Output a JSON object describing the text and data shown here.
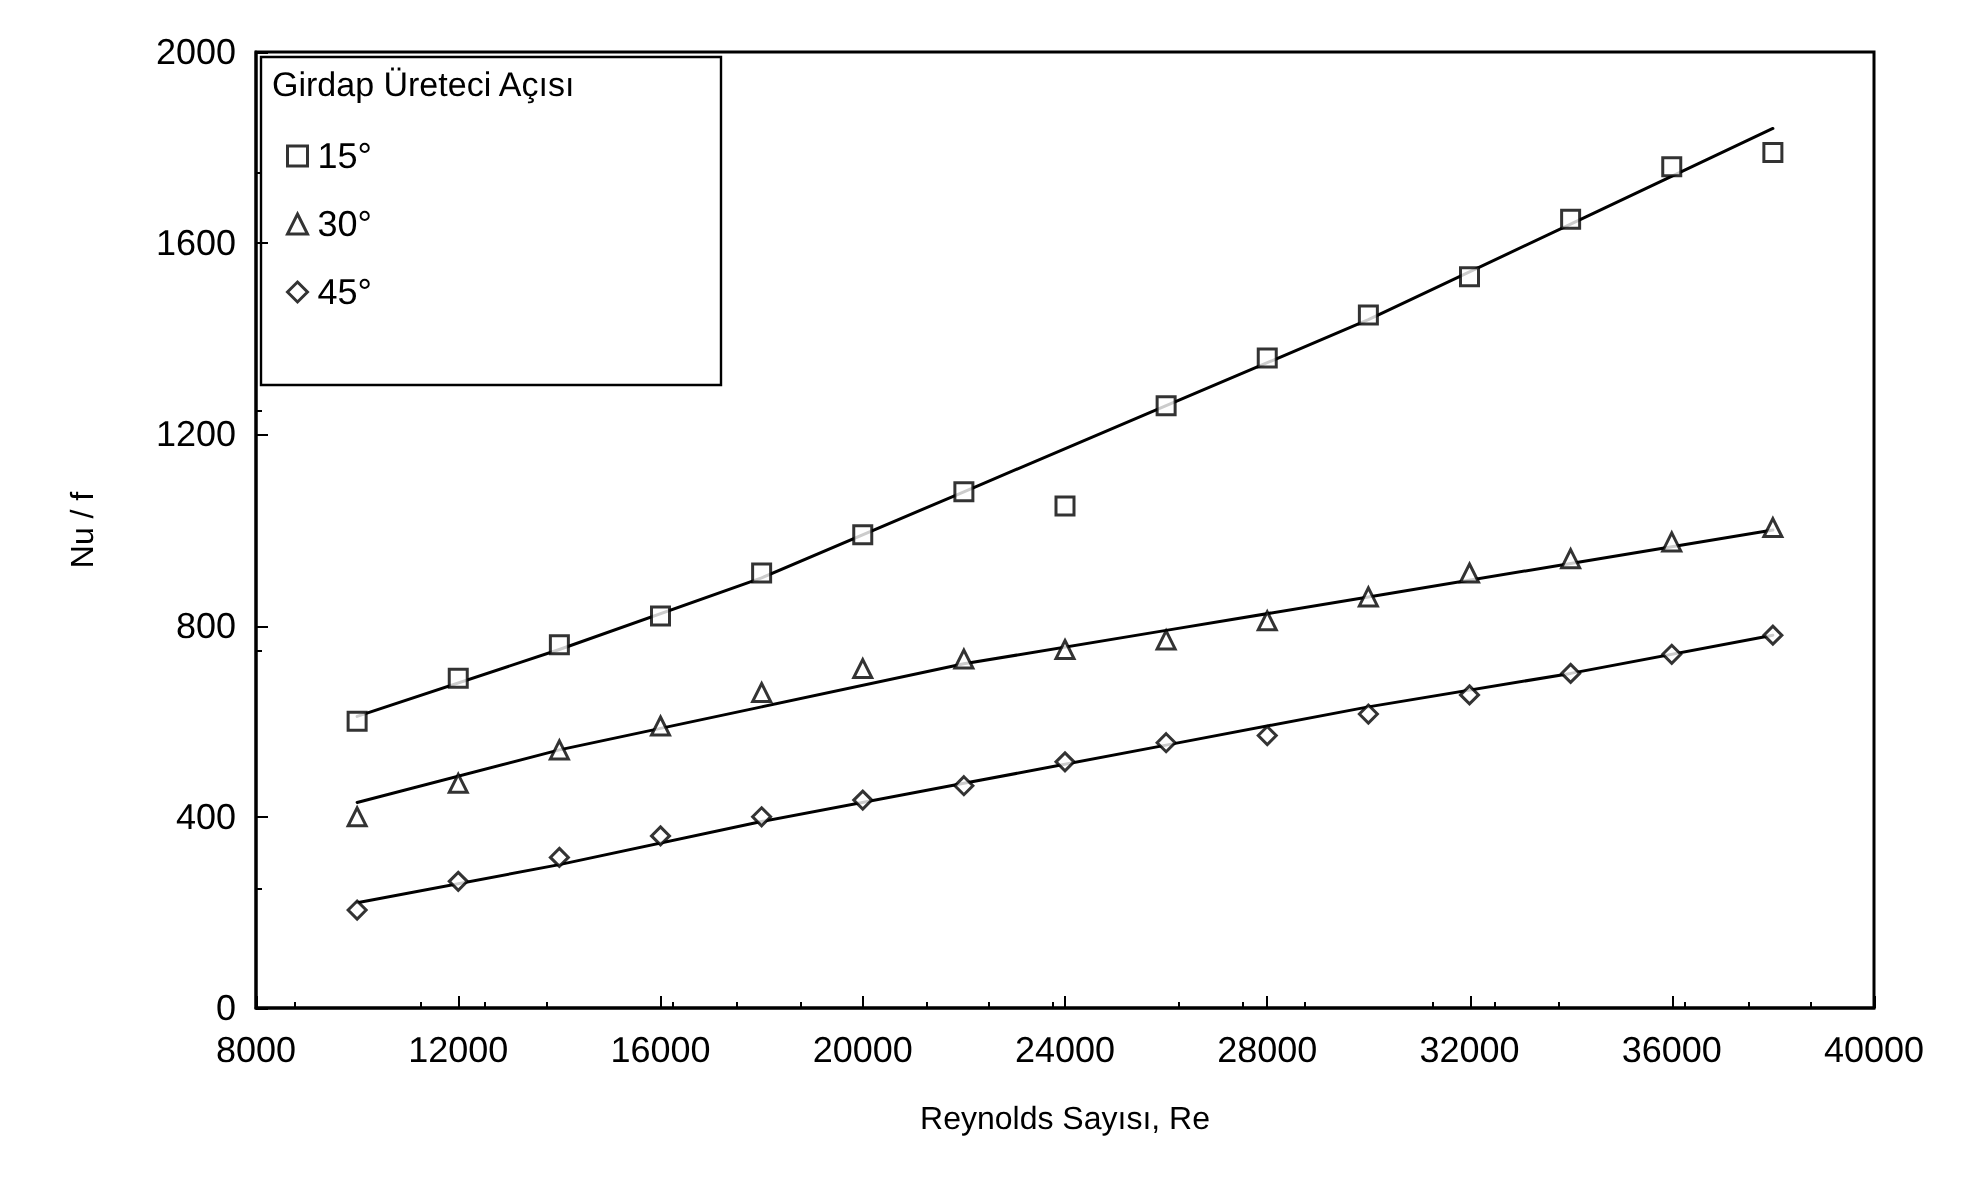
{
  "chart_data": {
    "type": "scatter",
    "xlabel": "Reynolds Sayısı, Re",
    "ylabel": "Nu / f",
    "legend_title": "Girdap Üreteci Açısı",
    "legend": "top left",
    "grid": false,
    "xlim": [
      8000,
      40000
    ],
    "xticks": [
      8000,
      12000,
      16000,
      20000,
      24000,
      28000,
      32000,
      36000,
      40000
    ],
    "ylim": [
      0,
      2000
    ],
    "yticks": [
      0,
      400,
      800,
      1200,
      1600,
      2000
    ],
    "series": [
      {
        "name": "15°",
        "marker": "square",
        "color": "#000000",
        "x": [
          10000,
          12000,
          14000,
          16000,
          18000,
          20000,
          22000,
          24000,
          26000,
          28000,
          30000,
          32000,
          34000,
          36000,
          38000
        ],
        "values": [
          600,
          690,
          760,
          820,
          910,
          990,
          1080,
          1050,
          1260,
          1360,
          1450,
          1530,
          1650,
          1760,
          1790
        ]
      },
      {
        "name": "30°",
        "marker": "triangle",
        "color": "#000000",
        "x": [
          10000,
          12000,
          14000,
          16000,
          18000,
          20000,
          22000,
          24000,
          26000,
          28000,
          30000,
          32000,
          34000,
          36000,
          38000
        ],
        "values": [
          400,
          470,
          540,
          590,
          660,
          710,
          730,
          750,
          770,
          810,
          860,
          910,
          940,
          975,
          1005
        ]
      },
      {
        "name": "45°",
        "marker": "diamond",
        "color": "#000000",
        "x": [
          10000,
          12000,
          14000,
          16000,
          18000,
          20000,
          22000,
          24000,
          26000,
          28000,
          30000,
          32000,
          34000,
          36000,
          38000
        ],
        "values": [
          205,
          265,
          315,
          360,
          400,
          435,
          465,
          515,
          555,
          570,
          615,
          655,
          700,
          740,
          780
        ]
      },
      {
        "type": "line",
        "marker": "none",
        "color": "#000000",
        "x": [
          10000,
          14000,
          18000,
          22000,
          26000,
          30000,
          34000,
          38000
        ],
        "values": [
          610,
          750,
          900,
          1080,
          1260,
          1440,
          1640,
          1840
        ]
      },
      {
        "type": "line",
        "marker": "none",
        "color": "#000000",
        "x": [
          10000,
          14000,
          18000,
          22000,
          26000,
          30000,
          34000,
          38000
        ],
        "values": [
          430,
          540,
          630,
          720,
          790,
          860,
          930,
          1000
        ]
      },
      {
        "type": "line",
        "marker": "none",
        "color": "#000000",
        "x": [
          10000,
          14000,
          18000,
          22000,
          26000,
          30000,
          34000,
          38000
        ],
        "values": [
          220,
          300,
          390,
          470,
          550,
          630,
          700,
          780
        ]
      }
    ]
  }
}
